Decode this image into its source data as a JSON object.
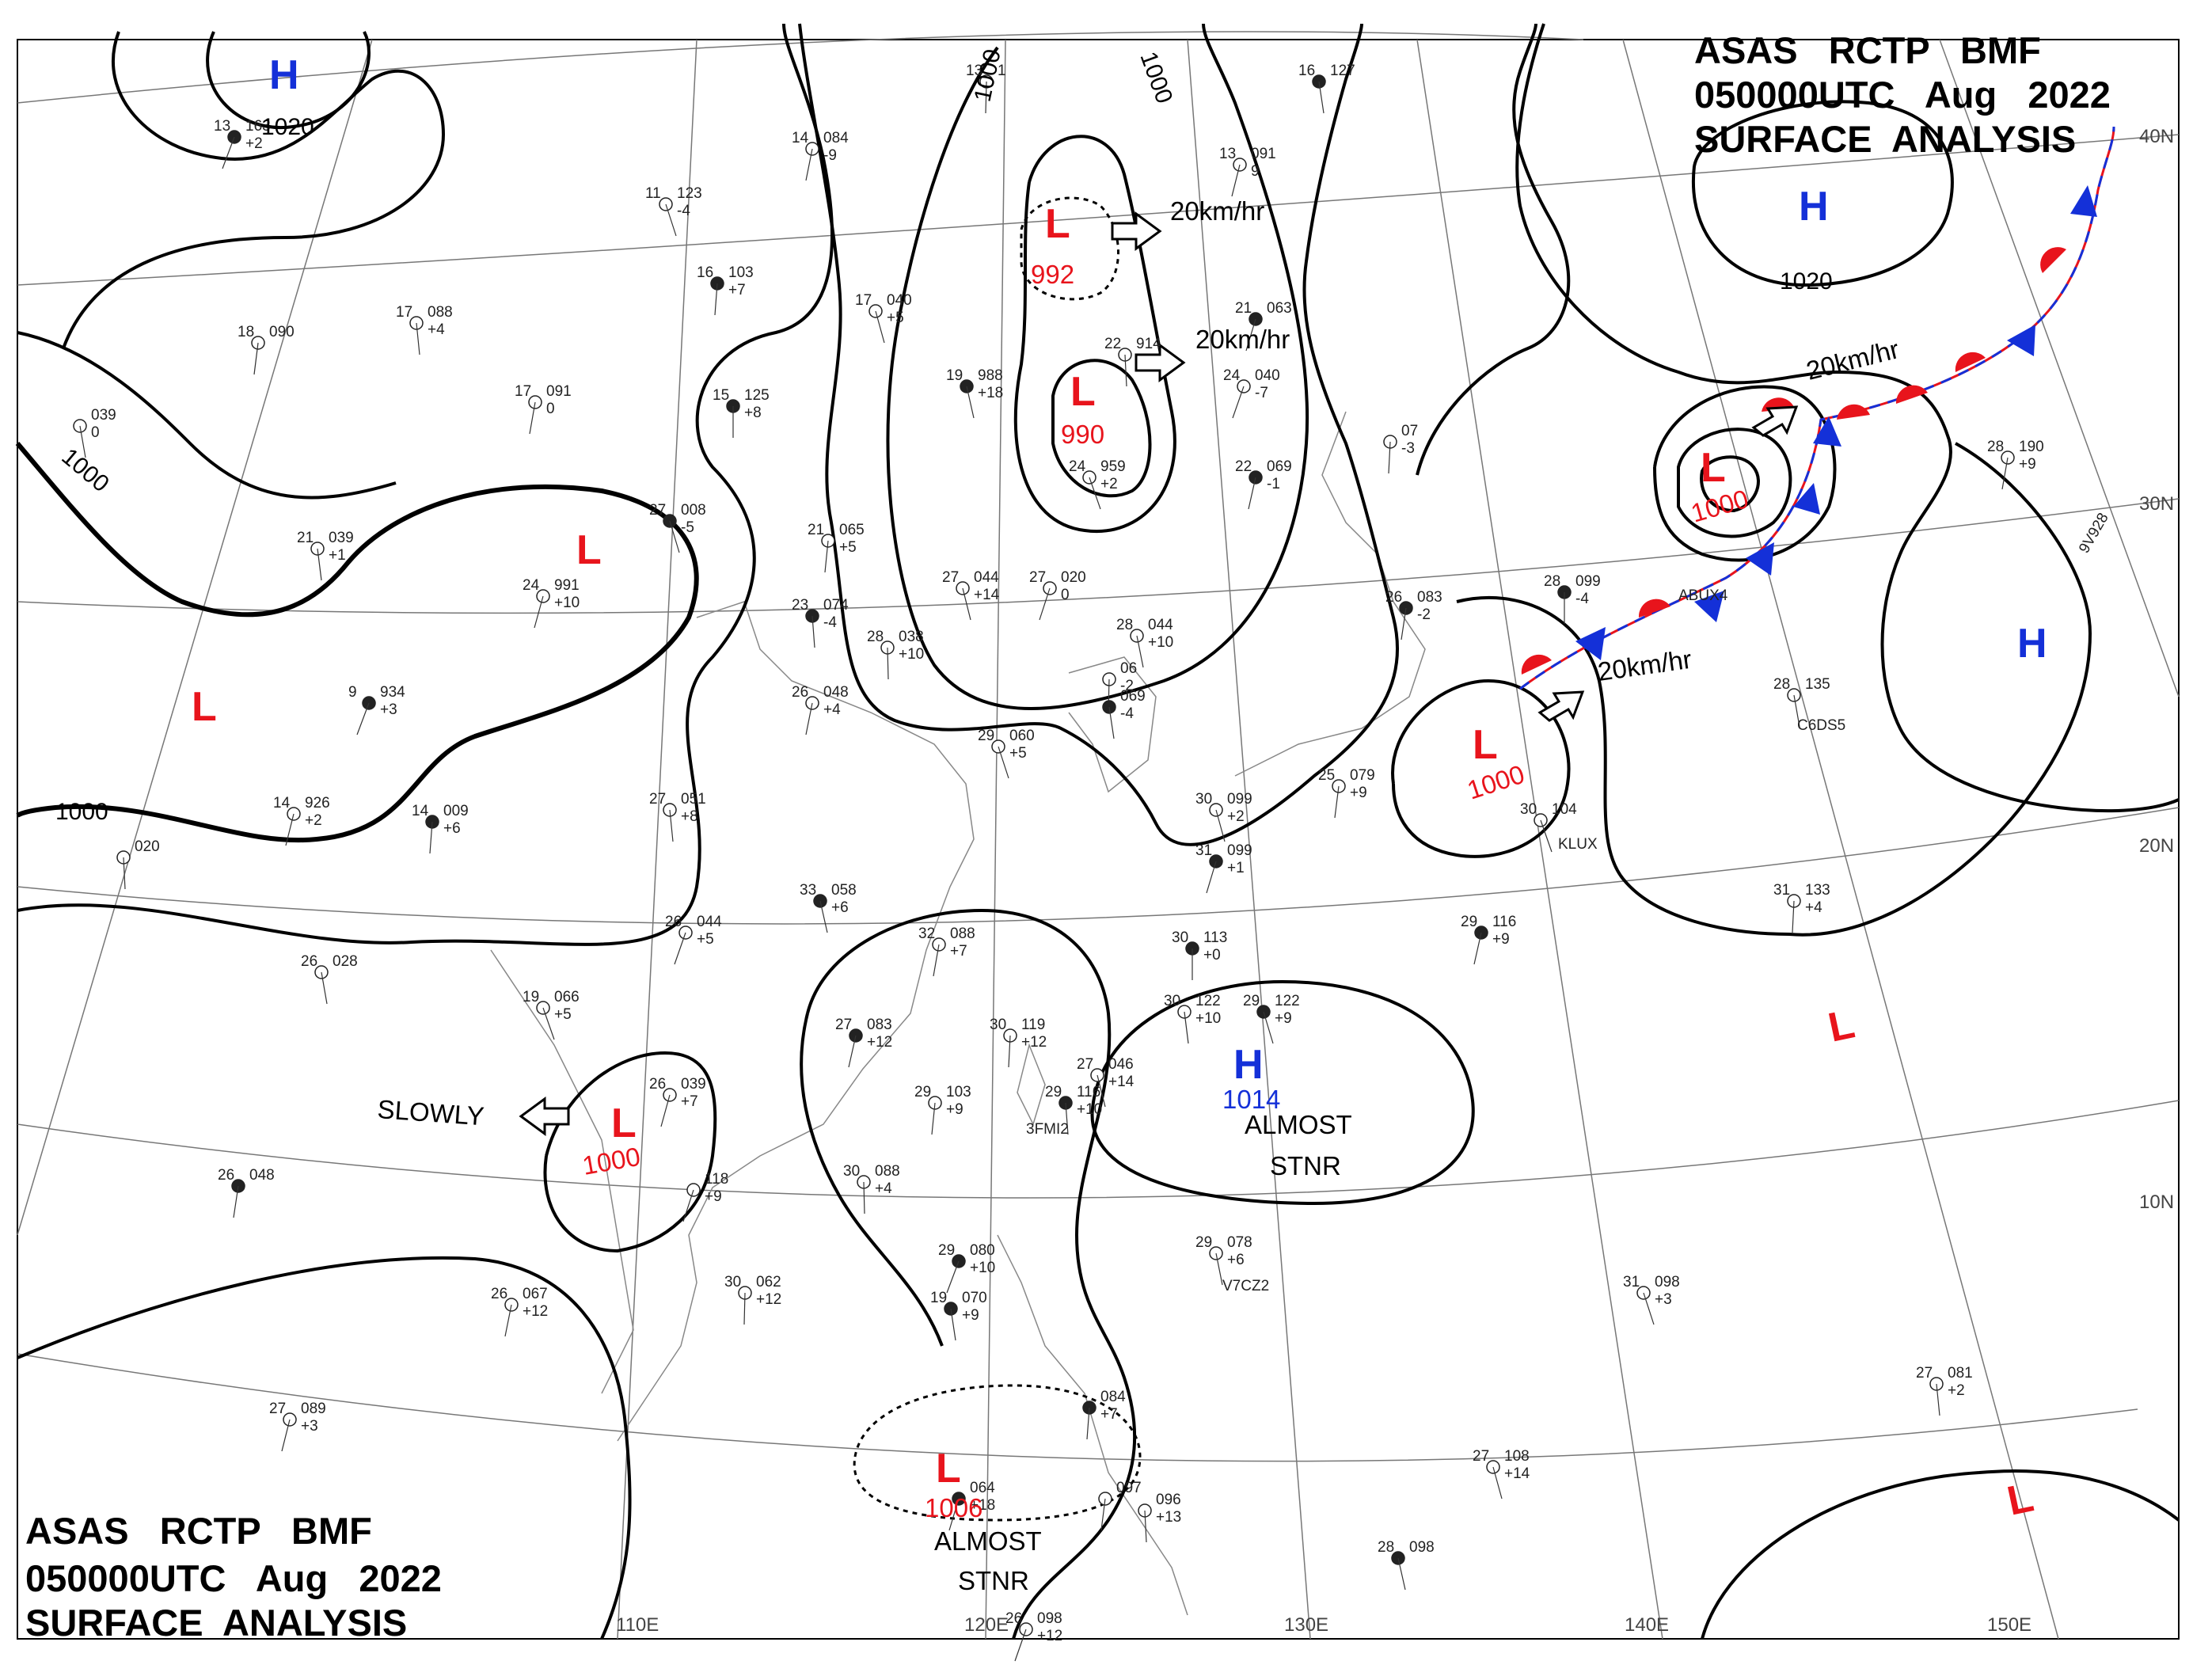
{
  "header": {
    "top_right": [
      "ASAS   RCTP   BMF",
      "050000UTC   Aug   2022",
      "SURFACE  ANALYSIS"
    ],
    "bottom_left": [
      "ASAS   RCTP   BMF",
      "050000UTC   Aug   2022",
      "SURFACE  ANALYSIS"
    ]
  },
  "longitude_labels": [
    "110E",
    "120E",
    "130E",
    "140E",
    "150E"
  ],
  "latitude_labels": [
    "40N",
    "30N",
    "20N",
    "10N"
  ],
  "isobar_labels": [
    "1020",
    "1000",
    "1000",
    "1000",
    "1000",
    "1020"
  ],
  "pressure_systems": [
    {
      "type": "H",
      "value": "1020",
      "color": "#1430d8"
    },
    {
      "type": "L",
      "value": "992",
      "color": "#e8141c"
    },
    {
      "type": "L",
      "value": "990",
      "color": "#e8141c"
    },
    {
      "type": "H",
      "value": "1020",
      "color": "#1430d8"
    },
    {
      "type": "L",
      "value": "1000",
      "color": "#e8141c"
    },
    {
      "type": "L",
      "value": "1000",
      "color": "#e8141c"
    },
    {
      "type": "L",
      "value": "",
      "color": "#e8141c"
    },
    {
      "type": "L",
      "value": "",
      "color": "#e8141c"
    },
    {
      "type": "H",
      "value": "",
      "color": "#1430d8"
    },
    {
      "type": "H",
      "value": "1014",
      "color": "#1430d8"
    },
    {
      "type": "L",
      "value": "1000",
      "color": "#e8141c"
    },
    {
      "type": "L",
      "value": "1006",
      "color": "#e8141c"
    },
    {
      "type": "L",
      "value": "",
      "color": "#e8141c"
    },
    {
      "type": "L",
      "value": "",
      "color": "#e8141c"
    }
  ],
  "motion_labels": [
    "20km/hr",
    "20km/hr",
    "20km/hr",
    "20km/hr",
    "SLOWLY"
  ],
  "stationary_notes": [
    {
      "line1": "ALMOST",
      "line2": "STNR"
    },
    {
      "line1": "ALMOST",
      "line2": "STNR"
    }
  ],
  "ship_callsigns": [
    "ABUX4",
    "C6DS5",
    "KLUX",
    "3FMI2",
    "V7CZ2",
    "9V928"
  ],
  "station_plots": [
    {
      "t": "13",
      "p": "163",
      "d": "+2"
    },
    {
      "t": "14",
      "p": "084",
      "d": "-9"
    },
    {
      "t": "13",
      "p": "1",
      "d": ""
    },
    {
      "t": "16",
      "p": "127",
      "d": ""
    },
    {
      "t": "11",
      "p": "123",
      "d": "-4"
    },
    {
      "t": "13",
      "p": "091",
      "d": "9"
    },
    {
      "t": "16",
      "p": "103",
      "d": "+7"
    },
    {
      "t": "17",
      "p": "088",
      "d": "+4"
    },
    {
      "t": "17",
      "p": "040",
      "d": "+5"
    },
    {
      "t": "21",
      "p": "063",
      "d": ""
    },
    {
      "t": "18",
      "p": "090",
      "d": ""
    },
    {
      "t": "22",
      "p": "914",
      "d": ""
    },
    {
      "t": "19",
      "p": "988",
      "d": "+18"
    },
    {
      "t": "24",
      "p": "040",
      "d": "-7"
    },
    {
      "t": "17",
      "p": "091",
      "d": "0"
    },
    {
      "t": "15",
      "p": "125",
      "d": "+8"
    },
    {
      "t": "",
      "p": "039",
      "d": "0"
    },
    {
      "t": "24",
      "p": "959",
      "d": "+2"
    },
    {
      "t": "22",
      "p": "069",
      "d": "-1"
    },
    {
      "t": "",
      "p": "07",
      "d": "-3"
    },
    {
      "t": "21",
      "p": "039",
      "d": "+1"
    },
    {
      "t": "27",
      "p": "008",
      "d": "-5"
    },
    {
      "t": "24",
      "p": "991",
      "d": "+10"
    },
    {
      "t": "21",
      "p": "065",
      "d": "+5"
    },
    {
      "t": "23",
      "p": "074",
      "d": "-4"
    },
    {
      "t": "27",
      "p": "044",
      "d": "+14"
    },
    {
      "t": "27",
      "p": "020",
      "d": "0"
    },
    {
      "t": "26",
      "p": "083",
      "d": "-2"
    },
    {
      "t": "28",
      "p": "038",
      "d": "+10"
    },
    {
      "t": "28",
      "p": "044",
      "d": "+10"
    },
    {
      "t": "9",
      "p": "934",
      "d": "+3"
    },
    {
      "t": "26",
      "p": "048",
      "d": "+4"
    },
    {
      "t": "",
      "p": "06",
      "d": "-2"
    },
    {
      "t": "",
      "p": "069",
      "d": "-4"
    },
    {
      "t": "29",
      "p": "060",
      "d": "+5"
    },
    {
      "t": "14",
      "p": "926",
      "d": "+2"
    },
    {
      "t": "14",
      "p": "009",
      "d": "+6"
    },
    {
      "t": "27",
      "p": "051",
      "d": "+8"
    },
    {
      "t": "30",
      "p": "099",
      "d": "+2"
    },
    {
      "t": "31",
      "p": "099",
      "d": "+1"
    },
    {
      "t": "25",
      "p": "079",
      "d": "+9"
    },
    {
      "t": "",
      "p": "020",
      "d": ""
    },
    {
      "t": "33",
      "p": "058",
      "d": "+6"
    },
    {
      "t": "26",
      "p": "044",
      "d": "+5"
    },
    {
      "t": "32",
      "p": "088",
      "d": "+7"
    },
    {
      "t": "30",
      "p": "113",
      "d": "+0"
    },
    {
      "t": "26",
      "p": "028",
      "d": ""
    },
    {
      "t": "19",
      "p": "066",
      "d": "+5"
    },
    {
      "t": "27",
      "p": "083",
      "d": "+12"
    },
    {
      "t": "30",
      "p": "119",
      "d": "+12"
    },
    {
      "t": "30",
      "p": "122",
      "d": "+10"
    },
    {
      "t": "29",
      "p": "122",
      "d": "+9"
    },
    {
      "t": "26",
      "p": "039",
      "d": "+7"
    },
    {
      "t": "29",
      "p": "103",
      "d": "+9"
    },
    {
      "t": "29",
      "p": "116",
      "d": "+10"
    },
    {
      "t": "27",
      "p": "046",
      "d": "+14"
    },
    {
      "t": "",
      "p": "118",
      "d": "+9"
    },
    {
      "t": "26",
      "p": "048",
      "d": ""
    },
    {
      "t": "30",
      "p": "088",
      "d": "+4"
    },
    {
      "t": "29",
      "p": "078",
      "d": "+6"
    },
    {
      "t": "29",
      "p": "080",
      "d": "+10"
    },
    {
      "t": "26",
      "p": "067",
      "d": "+12"
    },
    {
      "t": "30",
      "p": "062",
      "d": "+12"
    },
    {
      "t": "19",
      "p": "070",
      "d": "+9"
    },
    {
      "t": "31",
      "p": "098",
      "d": "+3"
    },
    {
      "t": "27",
      "p": "089",
      "d": "+3"
    },
    {
      "t": "",
      "p": "084",
      "d": "+7"
    },
    {
      "t": "27",
      "p": "081",
      "d": "+2"
    },
    {
      "t": "27",
      "p": "108",
      "d": "+14"
    },
    {
      "t": "",
      "p": "064",
      "d": "+18"
    },
    {
      "t": "",
      "p": "097",
      "d": ""
    },
    {
      "t": "",
      "p": "096",
      "d": "+13"
    },
    {
      "t": "28",
      "p": "098",
      "d": ""
    },
    {
      "t": "26",
      "p": "098",
      "d": "+12"
    },
    {
      "t": "28",
      "p": "190",
      "d": "+9"
    },
    {
      "t": "28",
      "p": "099",
      "d": "-4"
    },
    {
      "t": "28",
      "p": "135",
      "d": ""
    },
    {
      "t": "30",
      "p": "104",
      "d": ""
    },
    {
      "t": "29",
      "p": "116",
      "d": "+9"
    },
    {
      "t": "31",
      "p": "133",
      "d": "+4"
    }
  ]
}
